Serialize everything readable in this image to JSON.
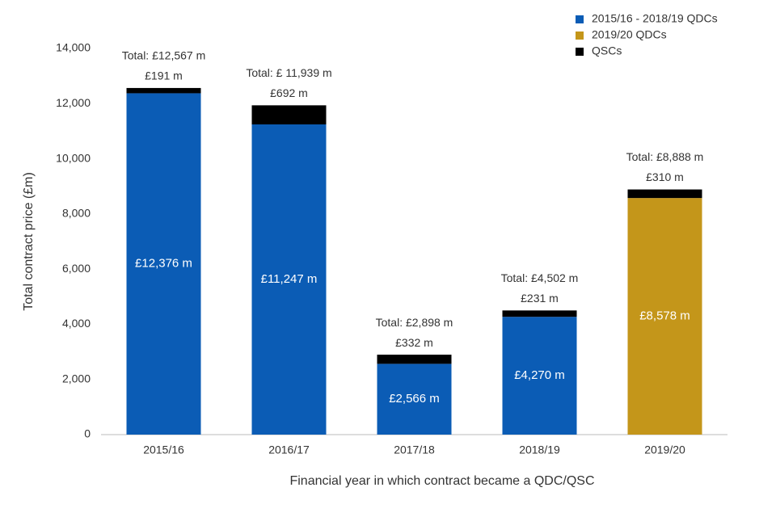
{
  "chart_data": {
    "type": "stacked-bar",
    "xlabel": "Financial year in which contract became a QDC/QSC",
    "ylabel": "Total contract price (£m)",
    "categories": [
      "2015/16",
      "2016/17",
      "2017/18",
      "2018/19",
      "2019/20"
    ],
    "series": [
      {
        "name": "2015/16 - 2018/19 QDCs",
        "color": "#0b5cb5",
        "values": [
          12376,
          11247,
          2566,
          4270,
          null
        ],
        "value_labels": [
          "£12,376 m",
          "£11,247 m",
          "£2,566 m",
          "£4,270 m",
          null
        ]
      },
      {
        "name": "2019/20 QDCs",
        "color": "#c4961a",
        "values": [
          null,
          null,
          null,
          null,
          8578
        ],
        "value_labels": [
          null,
          null,
          null,
          null,
          "£8,578 m"
        ]
      },
      {
        "name": "QSCs",
        "color": "#000000",
        "values": [
          191,
          692,
          332,
          231,
          310
        ],
        "value_labels": [
          "£191 m",
          "£692 m",
          "£332 m",
          "£231 m",
          "£310 m"
        ]
      }
    ],
    "totals": [
      12567,
      11939,
      2898,
      4502,
      8888
    ],
    "total_labels": [
      "Total: £12,567 m",
      "Total: £ 11,939 m",
      "Total: £2,898 m",
      "Total: £4,502 m",
      "Total: £8,888 m"
    ],
    "ylim": [
      0,
      14000
    ],
    "yticks": [
      0,
      {
        "value": 2000,
        "label": "2,000"
      },
      {
        "value": 4000,
        "label": "4,000"
      },
      {
        "value": 6000,
        "label": "6,000"
      },
      {
        "value": 8000,
        "label": "8,000"
      },
      {
        "value": 10000,
        "label": "10,000"
      },
      {
        "value": 12000,
        "label": "12,000"
      },
      {
        "value": 14000,
        "label": "14,000"
      }
    ],
    "grid": false,
    "legend": "top-right"
  }
}
